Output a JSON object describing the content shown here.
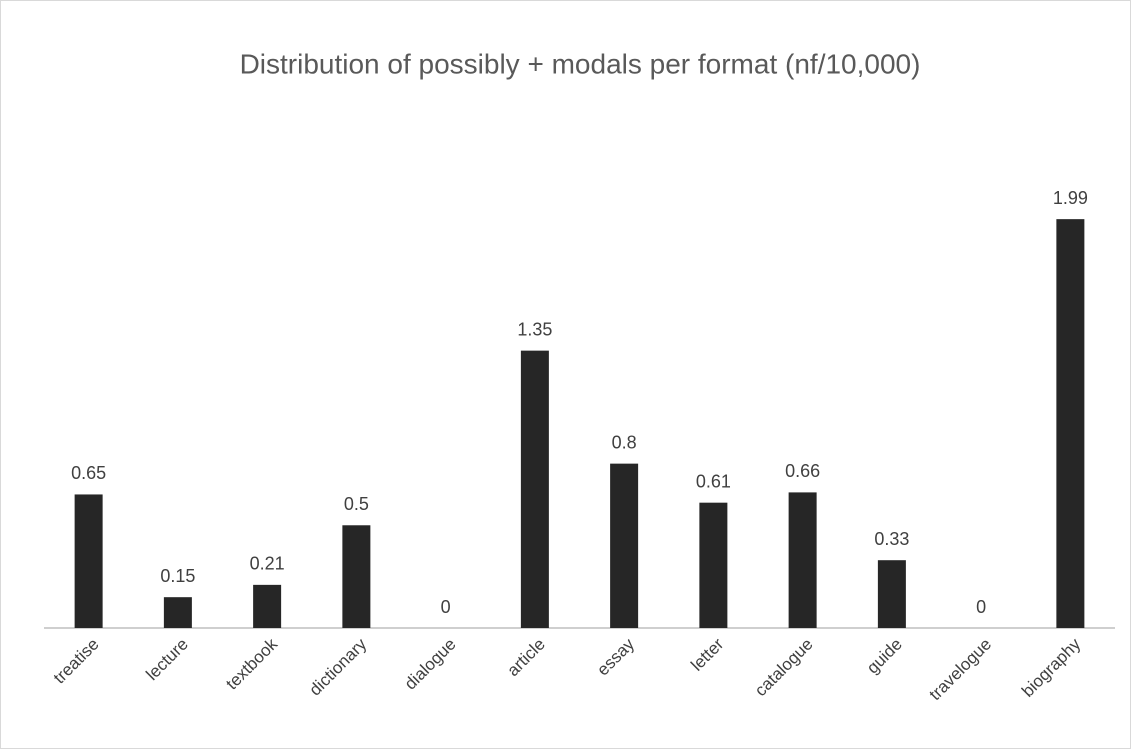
{
  "chart_data": {
    "type": "bar",
    "title": "Distribution of possibly + modals per format (nf/10,000)",
    "categories": [
      "treatise",
      "lecture",
      "textbook",
      "dictionary",
      "dialogue",
      "article",
      "essay",
      "letter",
      "catalogue",
      "guide",
      "travelogue",
      "biography"
    ],
    "values": [
      0.65,
      0.15,
      0.21,
      0.5,
      0,
      1.35,
      0.8,
      0.61,
      0.66,
      0.33,
      0,
      1.99
    ],
    "color": "#262626",
    "ylim": [
      0,
      2.2
    ]
  }
}
